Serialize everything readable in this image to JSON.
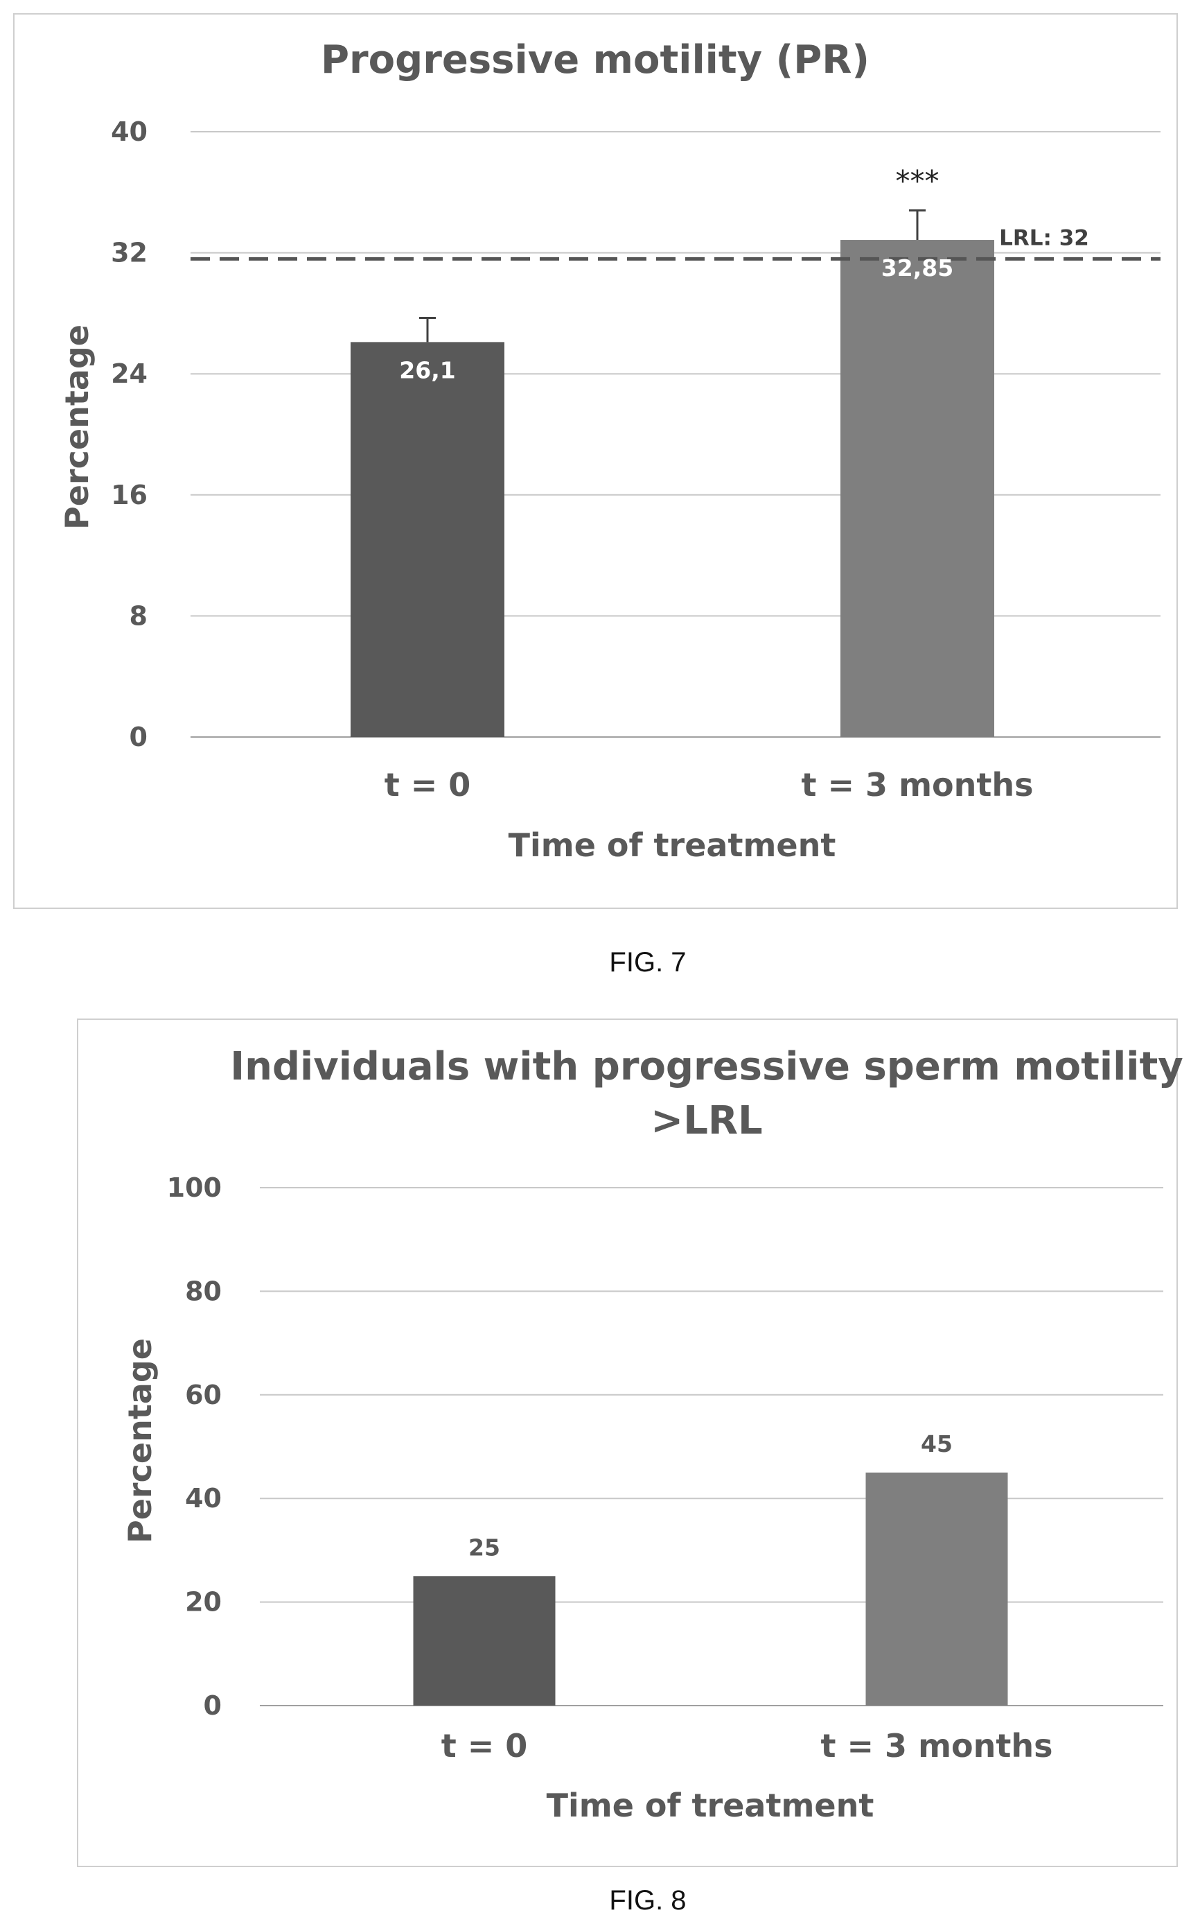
{
  "chart_data": [
    {
      "type": "bar",
      "title": "Progressive motility (PR)",
      "xlabel": "Time of treatment",
      "ylabel": "Percentage",
      "categories": [
        "t = 0",
        "t = 3 months"
      ],
      "values": [
        26.1,
        32.85
      ],
      "value_labels": [
        "26,1",
        "32,85"
      ],
      "error_upper": [
        27.7,
        34.8
      ],
      "ylim": [
        0,
        40
      ],
      "yticks": [
        0,
        8,
        16,
        24,
        32,
        40
      ],
      "bar_colors": [
        "#595959",
        "#7f7f7f"
      ],
      "reference_line": {
        "value": 31.6,
        "label": "LRL: 32"
      },
      "annotations": [
        {
          "category": "t = 3 months",
          "text": "***"
        }
      ],
      "grid": true,
      "caption": "FIG. 7"
    },
    {
      "type": "bar",
      "title": "Individuals with progressive sperm motility >LRL",
      "title_lines": [
        "Individuals with progressive sperm motility",
        ">LRL"
      ],
      "xlabel": "Time of treatment",
      "ylabel": "Percentage",
      "categories": [
        "t = 0",
        "t = 3 months"
      ],
      "values": [
        25,
        45
      ],
      "value_labels": [
        "25",
        "45"
      ],
      "ylim": [
        0,
        100
      ],
      "yticks": [
        0,
        20,
        40,
        60,
        80,
        100
      ],
      "bar_colors": [
        "#595959",
        "#7f7f7f"
      ],
      "grid": true,
      "caption": "FIG. 8"
    }
  ]
}
